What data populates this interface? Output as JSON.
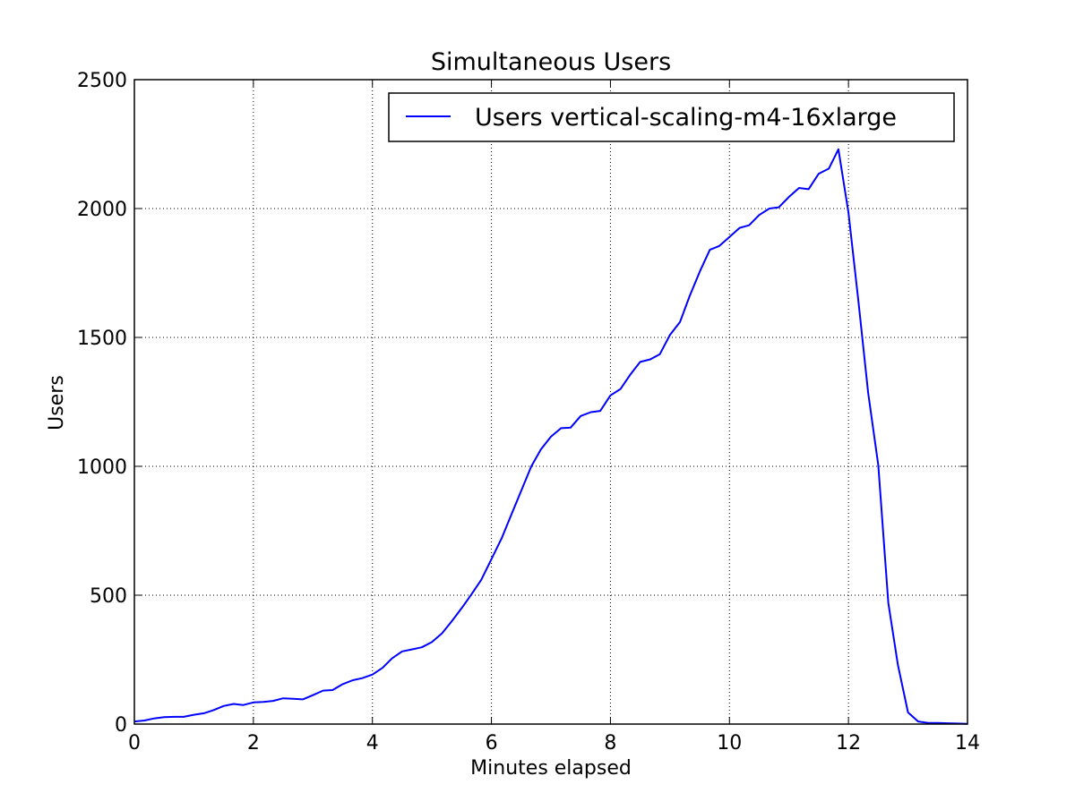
{
  "chart_data": {
    "type": "line",
    "title": "Simultaneous Users",
    "xlabel": "Minutes elapsed",
    "ylabel": "Users",
    "xlim": [
      0,
      14
    ],
    "ylim": [
      0,
      2500
    ],
    "xticks": [
      0,
      2,
      4,
      6,
      8,
      10,
      12,
      14
    ],
    "yticks": [
      0,
      500,
      1000,
      1500,
      2000,
      2500
    ],
    "grid": true,
    "legend_position": "top-right",
    "series": [
      {
        "name": "Users vertical-scaling-m4-16xlarge",
        "color": "#0000ff",
        "x": [
          0,
          0.17,
          0.33,
          0.5,
          0.67,
          0.83,
          1.0,
          1.17,
          1.33,
          1.5,
          1.67,
          1.83,
          2.0,
          2.17,
          2.33,
          2.5,
          2.67,
          2.83,
          3.0,
          3.17,
          3.33,
          3.5,
          3.67,
          3.83,
          4.0,
          4.17,
          4.33,
          4.5,
          4.67,
          4.83,
          5.0,
          5.17,
          5.33,
          5.5,
          5.67,
          5.83,
          6.0,
          6.17,
          6.33,
          6.5,
          6.67,
          6.83,
          7.0,
          7.17,
          7.33,
          7.5,
          7.67,
          7.83,
          8.0,
          8.17,
          8.33,
          8.5,
          8.67,
          8.83,
          9.0,
          9.17,
          9.33,
          9.5,
          9.67,
          9.83,
          10.0,
          10.17,
          10.33,
          10.5,
          10.67,
          10.83,
          11.0,
          11.17,
          11.33,
          11.5,
          11.67,
          11.83,
          12.0,
          12.17,
          12.33,
          12.5,
          12.67,
          12.83,
          13.0,
          13.17,
          13.33,
          13.5,
          13.67,
          13.83,
          14.0
        ],
        "y": [
          10,
          14,
          22,
          27,
          28,
          28,
          36,
          42,
          54,
          70,
          78,
          74,
          84,
          86,
          90,
          100,
          98,
          96,
          112,
          130,
          132,
          155,
          170,
          178,
          192,
          218,
          255,
          282,
          290,
          298,
          318,
          352,
          398,
          450,
          505,
          560,
          640,
          720,
          810,
          905,
          1000,
          1065,
          1115,
          1148,
          1150,
          1195,
          1210,
          1215,
          1275,
          1300,
          1355,
          1405,
          1415,
          1435,
          1510,
          1560,
          1660,
          1755,
          1840,
          1855,
          1890,
          1925,
          1935,
          1975,
          2000,
          2005,
          2045,
          2080,
          2075,
          2135,
          2155,
          2230,
          1985,
          1635,
          1285,
          1005,
          470,
          230,
          45,
          10,
          5,
          4,
          3,
          2,
          1
        ]
      }
    ]
  }
}
